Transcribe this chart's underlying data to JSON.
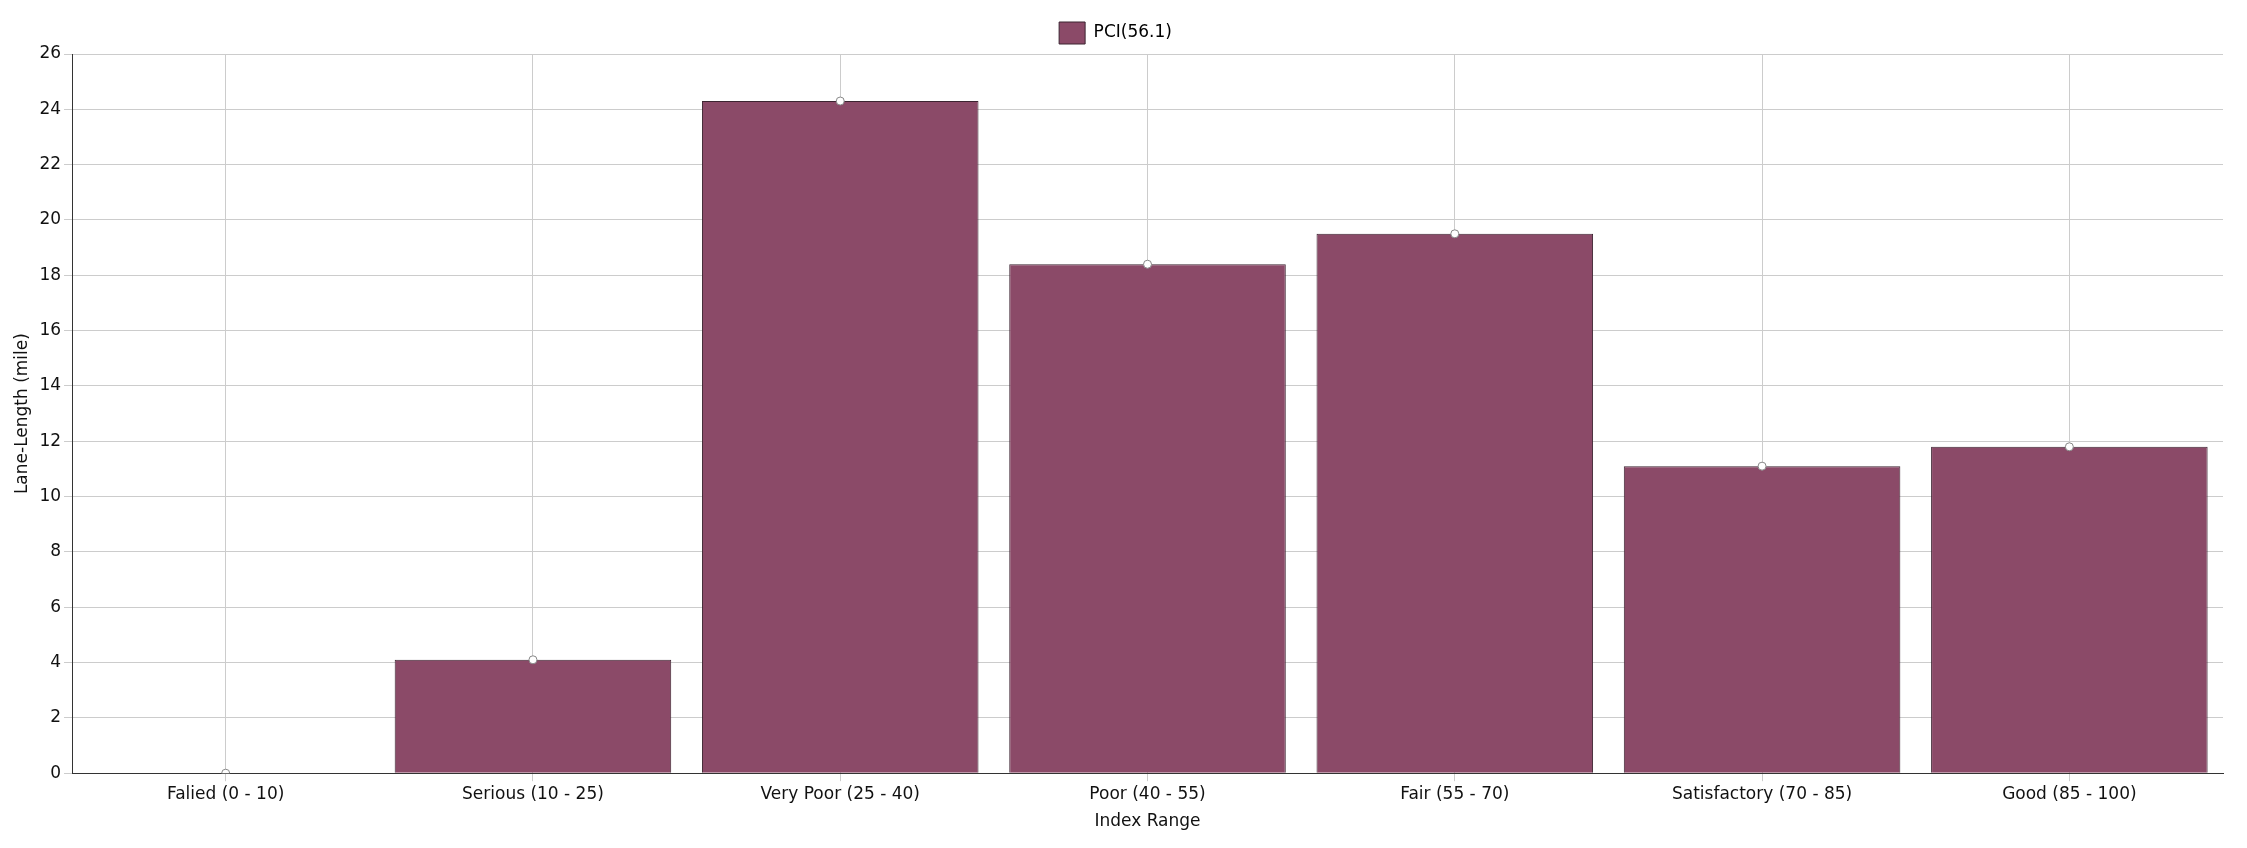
{
  "chart_data": {
    "type": "bar",
    "xlabel": "Index Range",
    "ylabel": "Lane-Length (mile)",
    "categories": [
      "Falied (0 - 10)",
      "Serious (10 - 25)",
      "Very Poor (25 - 40)",
      "Poor (40 - 55)",
      "Fair (55 - 70)",
      "Satisfactory (70 - 85)",
      "Good (85 - 100)"
    ],
    "series": [
      {
        "name": "PCI(56.1)",
        "color": "#8b4a68",
        "values": [
          0,
          4.1,
          24.3,
          18.4,
          19.5,
          11.1,
          11.8
        ]
      },
      {
        "type": "scatter",
        "color": "#ffffff",
        "x": [
          "Falied (0 - 10)",
          "Serious (10 - 25)",
          "Very Poor (25 - 40)",
          "Poor (40 - 55)",
          "Fair (55 - 70)",
          "Satisfactory (70 - 85)",
          "Good (85 - 100)"
        ],
        "values": [
          0,
          4.1,
          24.3,
          18.4,
          19.5,
          11.1,
          11.8
        ]
      }
    ],
    "ylim": [
      0,
      26
    ],
    "yticks": [
      0,
      2,
      4,
      6,
      8,
      10,
      12,
      14,
      16,
      18,
      20,
      22,
      24,
      26
    ],
    "grid": true,
    "legend": "top",
    "marker": "circle"
  }
}
